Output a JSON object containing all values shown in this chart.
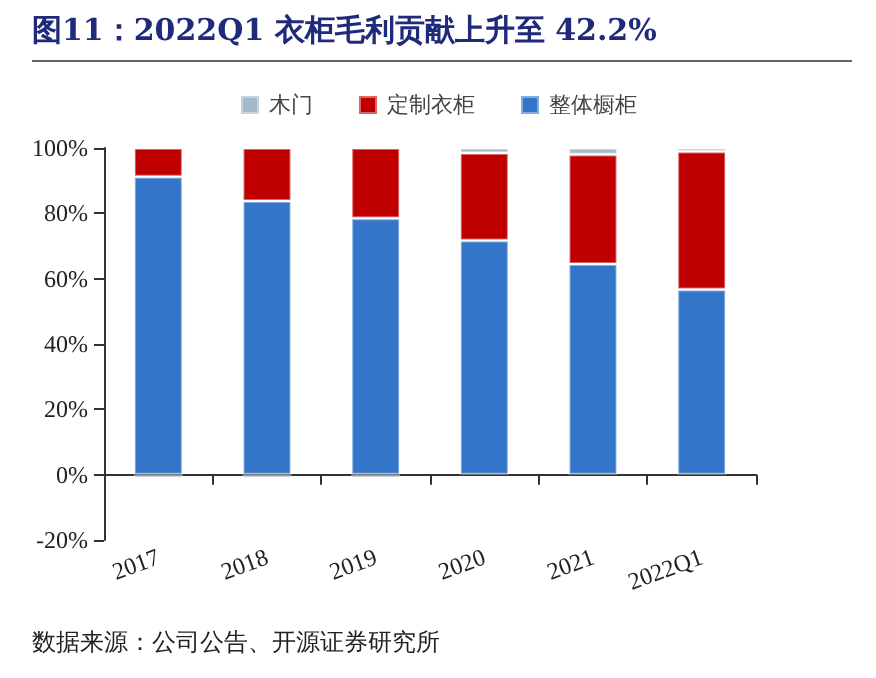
{
  "chart_data": {
    "type": "bar",
    "title": "图11：2022Q1 衣柜毛利贡献上升至 42.2%",
    "categories": [
      "2017",
      "2018",
      "2019",
      "2020",
      "2021",
      "2022Q1"
    ],
    "series": [
      {
        "name": "整体橱柜",
        "color": "#3375c8",
        "values": [
          91.2,
          83.8,
          78.5,
          71.7,
          64.5,
          56.7
        ]
      },
      {
        "name": "定制衣柜",
        "color": "#c00000",
        "values": [
          8.8,
          16.2,
          21.5,
          26.8,
          33.5,
          42.2
        ]
      },
      {
        "name": "木门",
        "color": "#a5b9c8",
        "values": [
          -1,
          -1,
          -1,
          1.5,
          2,
          1.1
        ]
      }
    ],
    "stacked": true,
    "ylim": [
      -20,
      100
    ],
    "yticks": [
      {
        "value": -20,
        "label": "-20%"
      },
      {
        "value": 0,
        "label": "0%"
      },
      {
        "value": 20,
        "label": "20%"
      },
      {
        "value": 40,
        "label": "40%"
      },
      {
        "value": 60,
        "label": "60%"
      },
      {
        "value": 80,
        "label": "80%"
      },
      {
        "value": 100,
        "label": "100%"
      }
    ],
    "legend": "top",
    "annotations": [
      "数据来源：公司公告、开源证券研究所"
    ]
  }
}
